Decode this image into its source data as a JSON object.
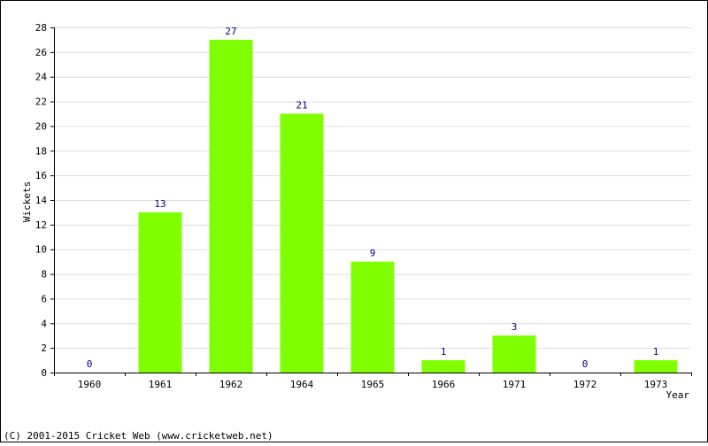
{
  "chart_data": {
    "type": "bar",
    "title": "",
    "xlabel": "Year",
    "ylabel": "Wickets",
    "categories": [
      "1960",
      "1961",
      "1962",
      "1964",
      "1965",
      "1966",
      "1971",
      "1972",
      "1973"
    ],
    "values": [
      0,
      13,
      27,
      21,
      9,
      1,
      3,
      0,
      1
    ],
    "ylim": [
      0,
      28
    ],
    "yticks": [
      0,
      2,
      4,
      6,
      8,
      10,
      12,
      14,
      16,
      18,
      20,
      22,
      24,
      26,
      28
    ],
    "grid": true,
    "bar_color": "#7fff00",
    "data_label_color": "#000080"
  },
  "footer": {
    "copyright": "(C) 2001-2015 Cricket Web (www.cricketweb.net)"
  }
}
